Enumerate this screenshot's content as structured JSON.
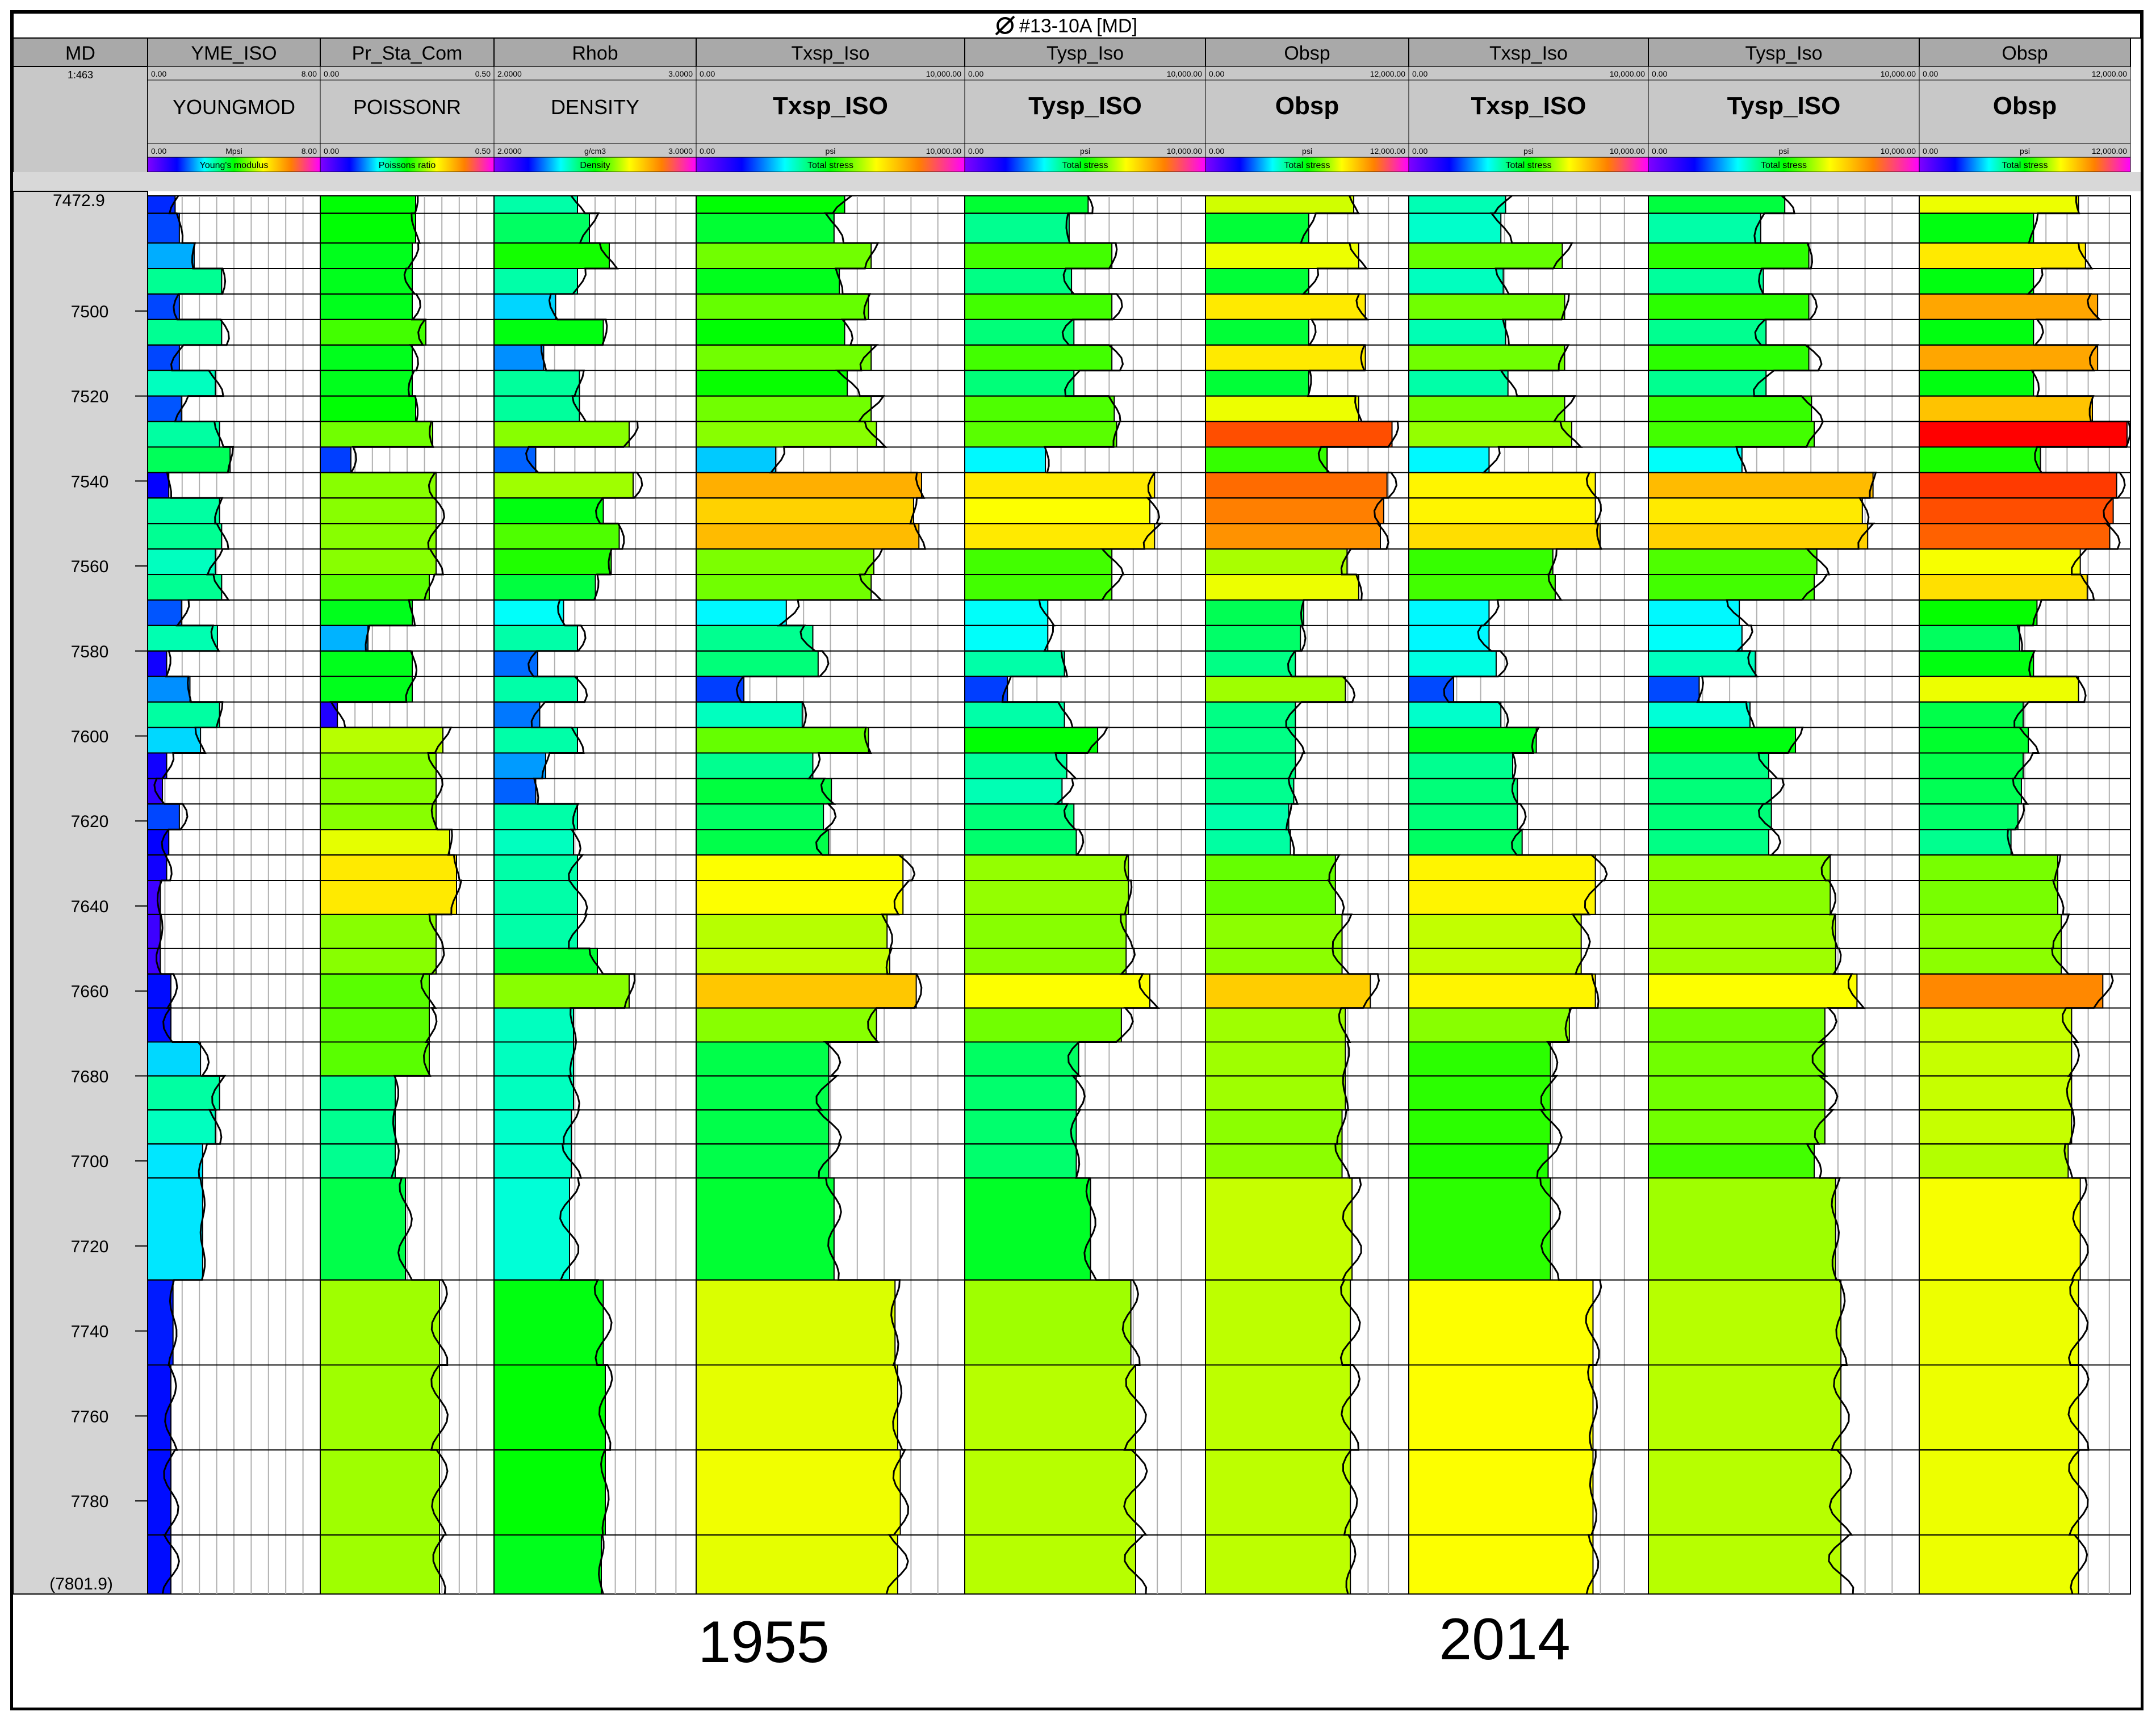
{
  "window": {
    "title": "#13-10A [MD]",
    "title_icon": "empty-set-icon"
  },
  "depth_track": {
    "header": "MD",
    "scale": "1:463",
    "top_label": "7472.9",
    "bottom_label": "(7801.9)"
  },
  "era_labels": [
    "1955",
    "2014"
  ],
  "chart_data": {
    "type": "well-log",
    "title": "#13-10A [MD]",
    "depth_range": [
      7472.9,
      7801.9
    ],
    "depth_ticks": [
      7500,
      7520,
      7540,
      7560,
      7580,
      7600,
      7620,
      7640,
      7660,
      7680,
      7700,
      7720,
      7740,
      7760,
      7780
    ],
    "layer_tops": [
      7472.9,
      7477,
      7484,
      7490,
      7496,
      7502,
      7508,
      7514,
      7520,
      7526,
      7532,
      7538,
      7544,
      7550,
      7556,
      7562,
      7568,
      7574,
      7580,
      7586,
      7592,
      7598,
      7604,
      7610,
      7616,
      7622,
      7628,
      7634,
      7642,
      7650,
      7656,
      7664,
      7672,
      7680,
      7688,
      7696,
      7704,
      7728,
      7748,
      7768,
      7788
    ],
    "tracks": [
      {
        "header": "YME_ISO",
        "name": "YOUNGMOD",
        "unit": "Mpsi",
        "range": [
          "0.00",
          "8.00"
        ],
        "colorbar": "Young's modulus",
        "min": 0,
        "max": 8,
        "values": [
          1.3,
          1.5,
          2.2,
          3.5,
          1.5,
          3.5,
          1.5,
          3.2,
          1.6,
          3.4,
          3.9,
          1.0,
          3.4,
          3.5,
          3.2,
          3.5,
          1.6,
          3.3,
          0.9,
          2.0,
          3.4,
          2.5,
          0.9,
          0.7,
          1.5,
          1.0,
          0.9,
          0.6,
          0.6,
          0.6,
          1.1,
          1.1,
          2.5,
          3.4,
          3.2,
          2.6,
          2.6,
          1.2,
          1.1,
          1.1,
          1.1
        ]
      },
      {
        "header": "Pr_Sta_Com",
        "name": "POISSONR",
        "unit": "",
        "range": [
          "0.00",
          "0.50"
        ],
        "colorbar": "Poissons ratio",
        "min": 0,
        "max": 0.5,
        "values": [
          0.28,
          0.28,
          0.27,
          0.27,
          0.27,
          0.31,
          0.27,
          0.27,
          0.28,
          0.33,
          0.09,
          0.34,
          0.34,
          0.34,
          0.34,
          0.32,
          0.27,
          0.14,
          0.27,
          0.27,
          0.05,
          0.36,
          0.34,
          0.34,
          0.34,
          0.38,
          0.4,
          0.4,
          0.34,
          0.34,
          0.32,
          0.32,
          0.32,
          0.22,
          0.22,
          0.22,
          0.25,
          0.35,
          0.35,
          0.35,
          0.35
        ]
      },
      {
        "header": "Rhob",
        "name": "DENSITY",
        "unit": "g/cm3",
        "range": [
          "2.0000",
          "3.0000"
        ],
        "colorbar": "Density",
        "min": 2.0,
        "max": 3.0,
        "values": [
          2.42,
          2.48,
          2.58,
          2.42,
          2.31,
          2.55,
          2.25,
          2.43,
          2.43,
          2.68,
          2.21,
          2.7,
          2.55,
          2.63,
          2.59,
          2.51,
          2.35,
          2.42,
          2.22,
          2.42,
          2.23,
          2.42,
          2.26,
          2.21,
          2.42,
          2.4,
          2.42,
          2.42,
          2.42,
          2.52,
          2.68,
          2.4,
          2.4,
          2.4,
          2.39,
          2.39,
          2.38,
          2.55,
          2.56,
          2.56,
          2.54
        ]
      },
      {
        "header": "Txsp_Iso",
        "name": "Txsp_ISO",
        "unit": "psi",
        "range": [
          "0.00",
          "10,000.00"
        ],
        "colorbar": "Total stress",
        "min": 0,
        "max": 10000,
        "era": "1955",
        "values": [
          5600,
          5200,
          6600,
          5400,
          6500,
          5600,
          6600,
          5700,
          6600,
          6800,
          3000,
          8500,
          8200,
          8400,
          6700,
          6600,
          3400,
          4400,
          4600,
          1800,
          4000,
          6500,
          4400,
          5100,
          4800,
          5000,
          7800,
          7800,
          7200,
          7300,
          8300,
          6800,
          5000,
          5000,
          5000,
          5000,
          5200,
          7500,
          7600,
          7700,
          7600
        ]
      },
      {
        "header": "Tysp_Iso",
        "name": "Tysp_ISO",
        "unit": "psi",
        "range": [
          "0.00",
          "10,000.00"
        ],
        "colorbar": "Total stress",
        "min": 0,
        "max": 10000,
        "era": "1955",
        "values": [
          5200,
          4400,
          6200,
          4500,
          6200,
          4600,
          6200,
          4600,
          6300,
          6400,
          3400,
          8000,
          7800,
          8000,
          6200,
          6200,
          3500,
          3500,
          4200,
          1800,
          4200,
          5600,
          4300,
          4100,
          4600,
          4700,
          6900,
          6900,
          6800,
          6800,
          7800,
          6600,
          4800,
          4700,
          4700,
          4700,
          5300,
          7000,
          7200,
          7200,
          7200
        ]
      },
      {
        "header": "Obsp",
        "name": "Obsp",
        "unit": "psi",
        "range": [
          "0.00",
          "12,000.00"
        ],
        "colorbar": "Total stress",
        "min": 0,
        "max": 12000,
        "era": "1955",
        "values": [
          8900,
          6200,
          9200,
          6200,
          9600,
          6200,
          9600,
          6200,
          9200,
          11200,
          7300,
          10900,
          10700,
          10500,
          8500,
          9200,
          5900,
          5700,
          5400,
          8400,
          5400,
          5400,
          5400,
          5300,
          5000,
          5100,
          7800,
          7800,
          8200,
          8200,
          9900,
          8400,
          8400,
          8400,
          8200,
          8200,
          8800,
          8700,
          8700,
          8700,
          8700
        ]
      },
      {
        "header": "Txsp_Iso",
        "name": "Txsp_ISO",
        "unit": "psi",
        "range": [
          "0.00",
          "10,000.00"
        ],
        "colorbar": "Total stress",
        "min": 0,
        "max": 10000,
        "era": "2014",
        "values": [
          4100,
          3900,
          6500,
          4000,
          6600,
          4100,
          6600,
          4200,
          6600,
          6900,
          3400,
          7900,
          7900,
          8100,
          6100,
          6200,
          3400,
          3400,
          3700,
          1900,
          3900,
          5400,
          4400,
          4600,
          4600,
          4800,
          7900,
          7900,
          7300,
          7300,
          7900,
          6800,
          6000,
          6000,
          6000,
          5900,
          6000,
          7800,
          7800,
          7800,
          7800
        ]
      },
      {
        "header": "Tysp_Iso",
        "name": "Tysp_ISO",
        "unit": "psi",
        "range": [
          "0.00",
          "10,000.00"
        ],
        "colorbar": "Total stress",
        "min": 0,
        "max": 10000,
        "era": "2014",
        "values": [
          5100,
          4200,
          6000,
          4300,
          6000,
          4400,
          6000,
          4400,
          6100,
          6200,
          3500,
          8400,
          8000,
          8200,
          6300,
          6200,
          3400,
          3500,
          4000,
          1900,
          3800,
          5500,
          4500,
          4600,
          4600,
          4500,
          6800,
          6800,
          7000,
          7000,
          7800,
          6600,
          6600,
          6600,
          6600,
          6200,
          7000,
          7200,
          7200,
          7200,
          7200
        ]
      },
      {
        "header": "Obsp",
        "name": "Obsp",
        "unit": "psi",
        "range": [
          "0.00",
          "12,000.00"
        ],
        "colorbar": "Total stress",
        "min": 0,
        "max": 12000,
        "era": "2014",
        "values": [
          9200,
          6600,
          9600,
          6600,
          10300,
          6600,
          10300,
          6600,
          10000,
          12300,
          7000,
          11400,
          11200,
          11000,
          9300,
          9700,
          6800,
          5800,
          6600,
          9200,
          6000,
          6300,
          6000,
          5900,
          5700,
          5300,
          8000,
          8000,
          8200,
          8200,
          10600,
          8800,
          8800,
          8800,
          8800,
          8600,
          9300,
          9200,
          9200,
          9200,
          9200
        ]
      }
    ]
  }
}
